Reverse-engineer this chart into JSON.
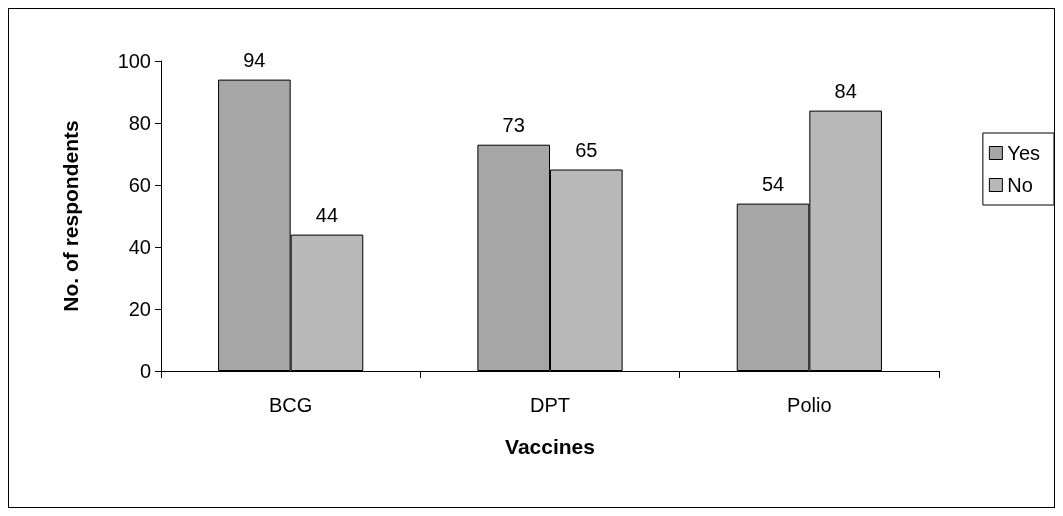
{
  "chart_data": {
    "type": "bar",
    "xlabel": "Vaccines",
    "ylabel": "No. of respondents",
    "categories": [
      "BCG",
      "DPT",
      "Polio"
    ],
    "series": [
      {
        "name": "Yes",
        "color": "#a6a6a6",
        "values": [
          94,
          73,
          54
        ]
      },
      {
        "name": "No",
        "color": "#b8b8b8",
        "values": [
          44,
          65,
          84
        ]
      }
    ],
    "ylim": [
      0,
      100
    ],
    "yticks": [
      0,
      20,
      40,
      60,
      80,
      100
    ],
    "grid": false,
    "legend": "right",
    "data_labels": true
  }
}
